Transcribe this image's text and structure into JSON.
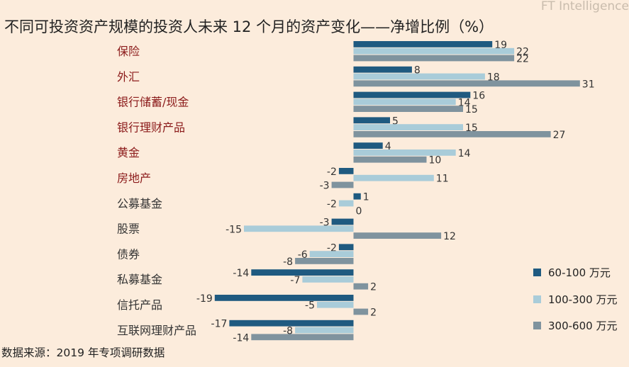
{
  "watermark": "FT Intelligence",
  "chart_data": {
    "type": "bar",
    "orientation": "horizontal",
    "title": "不同可投资资产规模的投资人未来 12 个月的资产变化——净增比例（%）",
    "source": "数据来源：2019 年专项调研数据",
    "categories": [
      "保险",
      "外汇",
      "银行储蓄/现金",
      "银行理财产品",
      "黄金",
      "房地产",
      "公募基金",
      "股票",
      "债券",
      "私募基金",
      "信托产品",
      "互联网理财产品"
    ],
    "category_colors": [
      "#8b1a1a",
      "#8b1a1a",
      "#8b1a1a",
      "#8b1a1a",
      "#8b1a1a",
      "#8b1a1a",
      "#333333",
      "#333333",
      "#333333",
      "#333333",
      "#333333",
      "#333333"
    ],
    "series": [
      {
        "name": "60-100 万元",
        "color": "#1f5a80",
        "values": [
          19,
          8,
          16,
          5,
          4,
          -2,
          1,
          -3,
          -2,
          -14,
          -19,
          -17
        ]
      },
      {
        "name": "100-300 万元",
        "color": "#a9ccd9",
        "values": [
          22,
          18,
          14,
          15,
          14,
          11,
          -2,
          -15,
          -6,
          -7,
          -5,
          -8
        ]
      },
      {
        "name": "300-600 万元",
        "color": "#7f939e",
        "values": [
          22,
          31,
          15,
          27,
          10,
          -3,
          0,
          12,
          -8,
          2,
          2,
          -14
        ]
      }
    ],
    "legend_position": "bottom-right",
    "grid": false
  }
}
